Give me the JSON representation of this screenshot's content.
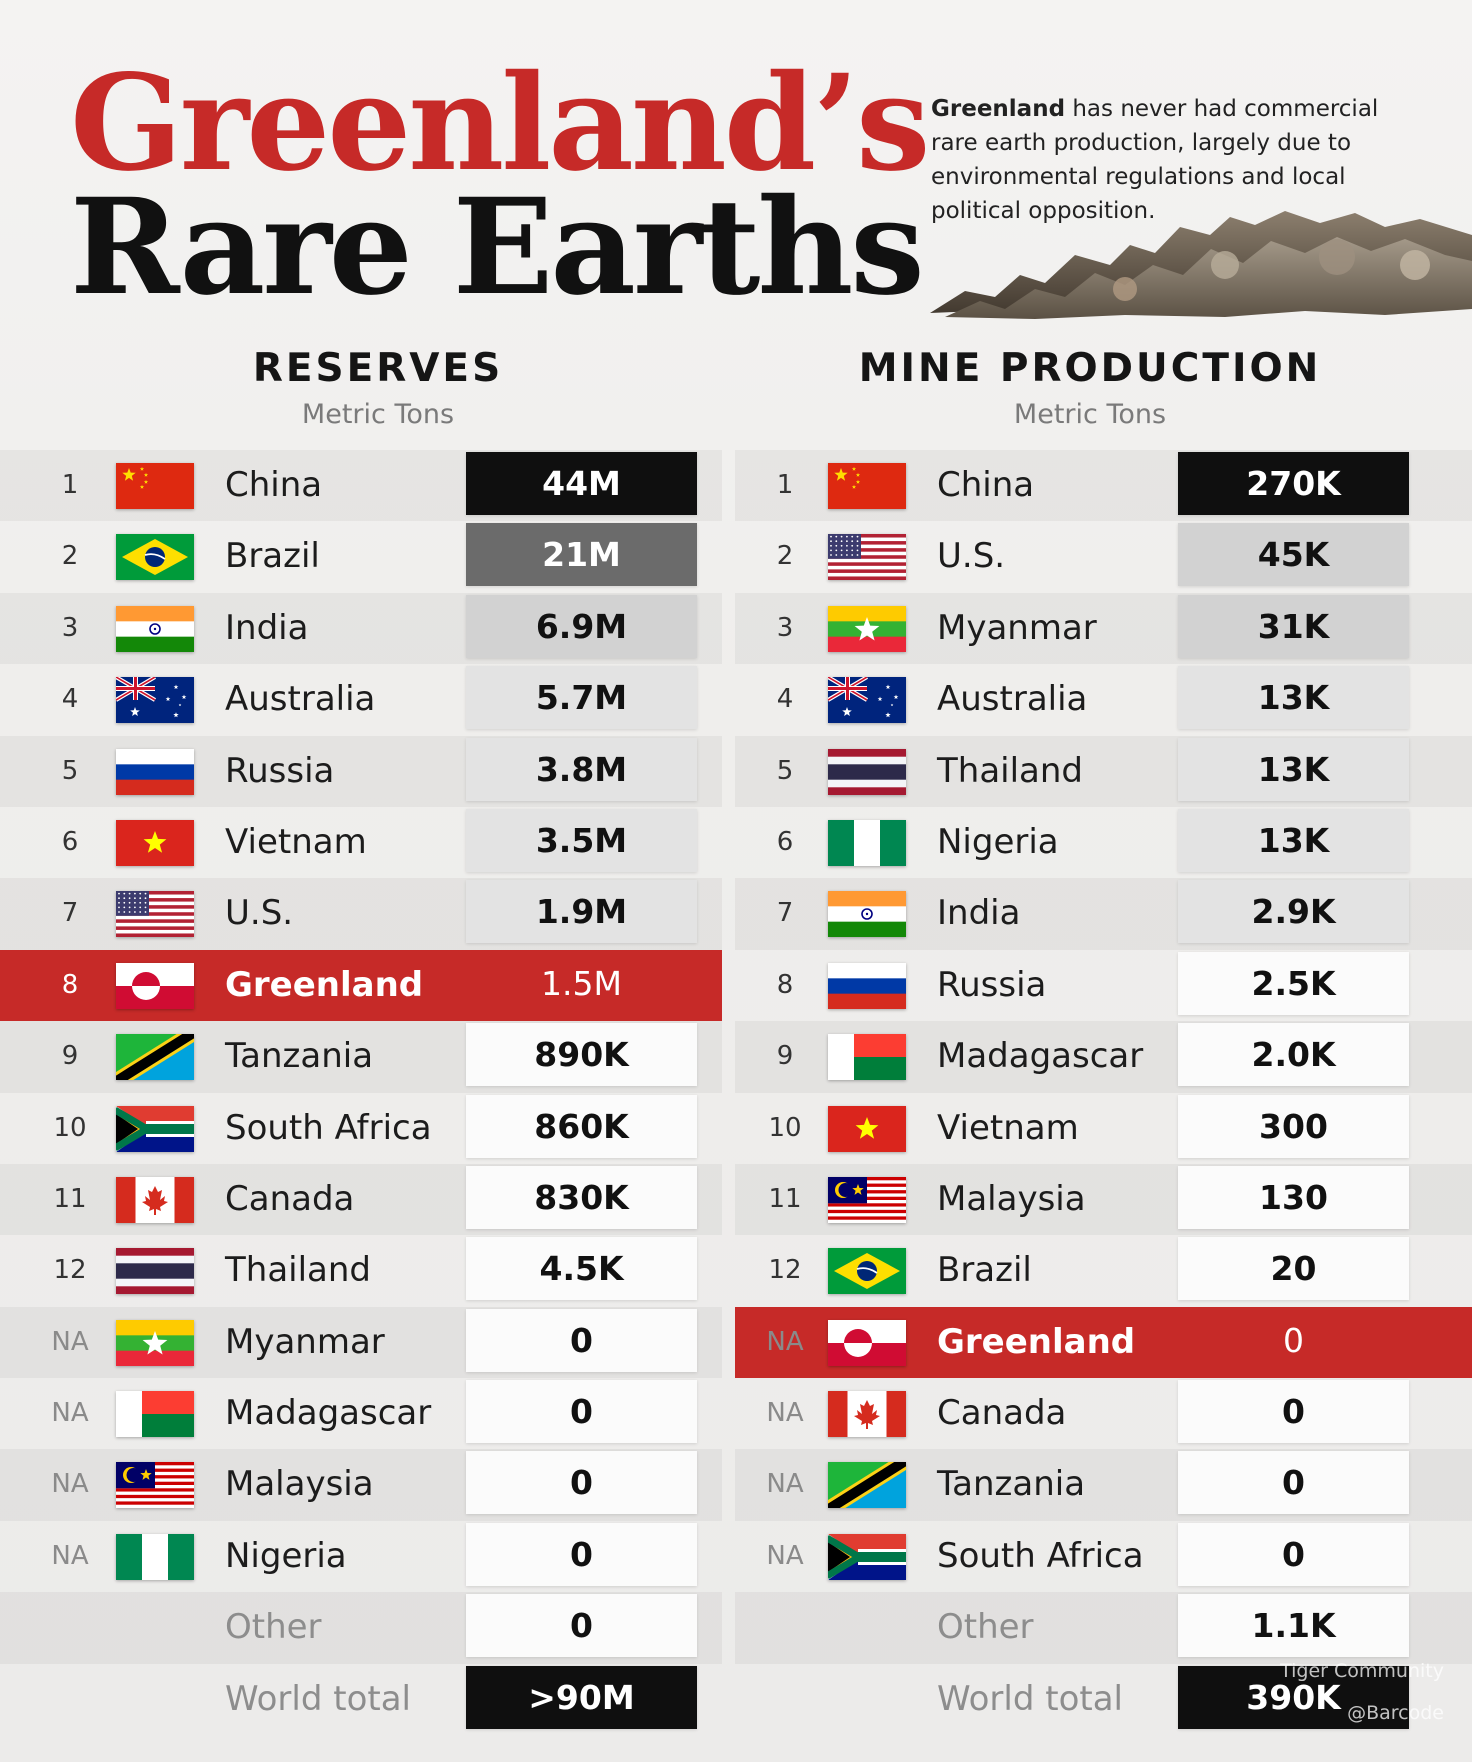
{
  "header": {
    "title_line1": "Greenland’s",
    "title_line2": "Rare Earths",
    "intro_bold": "Greenland",
    "intro_rest": " has never had commercial rare earth production, largely due to environmental regulations and local political opposition."
  },
  "chart_data": [
    {
      "type": "table",
      "title": "RESERVES",
      "subtitle": "Metric Tons",
      "rows": [
        {
          "rank": "1",
          "country": "China",
          "flag": "china",
          "value": "44M",
          "value_mt": 44000000
        },
        {
          "rank": "2",
          "country": "Brazil",
          "flag": "brazil",
          "value": "21M",
          "value_mt": 21000000
        },
        {
          "rank": "3",
          "country": "India",
          "flag": "india",
          "value": "6.9M",
          "value_mt": 6900000
        },
        {
          "rank": "4",
          "country": "Australia",
          "flag": "australia",
          "value": "5.7M",
          "value_mt": 5700000
        },
        {
          "rank": "5",
          "country": "Russia",
          "flag": "russia",
          "value": "3.8M",
          "value_mt": 3800000
        },
        {
          "rank": "6",
          "country": "Vietnam",
          "flag": "vietnam",
          "value": "3.5M",
          "value_mt": 3500000
        },
        {
          "rank": "7",
          "country": "U.S.",
          "flag": "us",
          "value": "1.9M",
          "value_mt": 1900000
        },
        {
          "rank": "8",
          "country": "Greenland",
          "flag": "greenland",
          "value": "1.5M",
          "value_mt": 1500000,
          "highlight": true
        },
        {
          "rank": "9",
          "country": "Tanzania",
          "flag": "tanzania",
          "value": "890K",
          "value_mt": 890000
        },
        {
          "rank": "10",
          "country": "South Africa",
          "flag": "southafrica",
          "value": "860K",
          "value_mt": 860000
        },
        {
          "rank": "11",
          "country": "Canada",
          "flag": "canada",
          "value": "830K",
          "value_mt": 830000
        },
        {
          "rank": "12",
          "country": "Thailand",
          "flag": "thailand",
          "value": "4.5K",
          "value_mt": 4500
        },
        {
          "rank": "NA",
          "country": "Myanmar",
          "flag": "myanmar",
          "value": "0",
          "value_mt": 0
        },
        {
          "rank": "NA",
          "country": "Madagascar",
          "flag": "madagascar",
          "value": "0",
          "value_mt": 0
        },
        {
          "rank": "NA",
          "country": "Malaysia",
          "flag": "malaysia",
          "value": "0",
          "value_mt": 0
        },
        {
          "rank": "NA",
          "country": "Nigeria",
          "flag": "nigeria",
          "value": "0",
          "value_mt": 0
        },
        {
          "rank": "",
          "country": "Other",
          "flag": "",
          "value": "0",
          "value_mt": 0
        },
        {
          "rank": "",
          "country": "World total",
          "flag": "",
          "value": ">90M",
          "value_mt": 90000000,
          "total": true
        }
      ]
    },
    {
      "type": "table",
      "title": "MINE PRODUCTION",
      "subtitle": "Metric Tons",
      "rows": [
        {
          "rank": "1",
          "country": "China",
          "flag": "china",
          "value": "270K",
          "value_mt": 270000
        },
        {
          "rank": "2",
          "country": "U.S.",
          "flag": "us",
          "value": "45K",
          "value_mt": 45000
        },
        {
          "rank": "3",
          "country": "Myanmar",
          "flag": "myanmar",
          "value": "31K",
          "value_mt": 31000
        },
        {
          "rank": "4",
          "country": "Australia",
          "flag": "australia",
          "value": "13K",
          "value_mt": 13000
        },
        {
          "rank": "5",
          "country": "Thailand",
          "flag": "thailand",
          "value": "13K",
          "value_mt": 13000
        },
        {
          "rank": "6",
          "country": "Nigeria",
          "flag": "nigeria",
          "value": "13K",
          "value_mt": 13000
        },
        {
          "rank": "7",
          "country": "India",
          "flag": "india",
          "value": "2.9K",
          "value_mt": 2900
        },
        {
          "rank": "8",
          "country": "Russia",
          "flag": "russia",
          "value": "2.5K",
          "value_mt": 2500
        },
        {
          "rank": "9",
          "country": "Madagascar",
          "flag": "madagascar",
          "value": "2.0K",
          "value_mt": 2000
        },
        {
          "rank": "10",
          "country": "Vietnam",
          "flag": "vietnam",
          "value": "300",
          "value_mt": 300
        },
        {
          "rank": "11",
          "country": "Malaysia",
          "flag": "malaysia",
          "value": "130",
          "value_mt": 130
        },
        {
          "rank": "12",
          "country": "Brazil",
          "flag": "brazil",
          "value": "20",
          "value_mt": 20
        },
        {
          "rank": "NA",
          "country": "Greenland",
          "flag": "greenland",
          "value": "0",
          "value_mt": 0,
          "highlight": true
        },
        {
          "rank": "NA",
          "country": "Canada",
          "flag": "canada",
          "value": "0",
          "value_mt": 0
        },
        {
          "rank": "NA",
          "country": "Tanzania",
          "flag": "tanzania",
          "value": "0",
          "value_mt": 0
        },
        {
          "rank": "NA",
          "country": "South Africa",
          "flag": "southafrica",
          "value": "0",
          "value_mt": 0
        },
        {
          "rank": "",
          "country": "Other",
          "flag": "",
          "value": "1.1K",
          "value_mt": 1100
        },
        {
          "rank": "",
          "country": "World total",
          "flag": "",
          "value": "390K",
          "value_mt": 390000,
          "total": true
        }
      ]
    }
  ],
  "watermark": {
    "line1": "Tiger Community",
    "line2": "@Barcode"
  },
  "colors": {
    "accent_red": "#c62a28",
    "dark_cell": "#0f0f0f",
    "mid_cell": "#6b6b6b"
  }
}
